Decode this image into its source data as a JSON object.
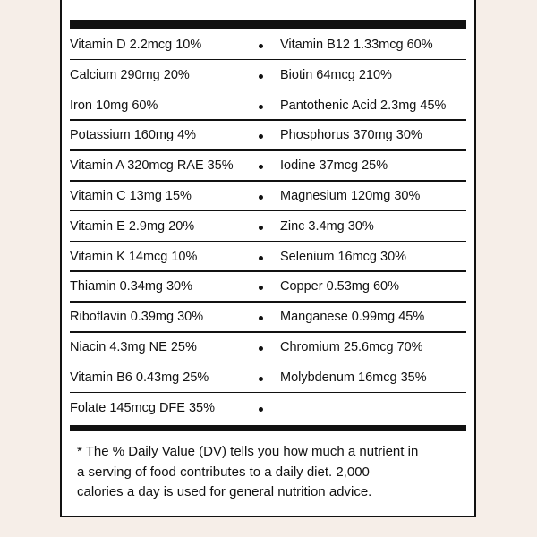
{
  "rows": [
    [
      "Vitamin D 2.2mcg 10%",
      "Vitamin B12 1.33mcg 60%"
    ],
    [
      "Calcium 290mg 20%",
      "Biotin 64mcg 210%"
    ],
    [
      "Iron 10mg 60%",
      "Pantothenic Acid 2.3mg 45%"
    ],
    [
      "Potassium 160mg 4%",
      "Phosphorus 370mg 30%"
    ],
    [
      "Vitamin A 320mcg RAE 35%",
      "Iodine 37mcg 25%"
    ],
    [
      "Vitamin C 13mg 15%",
      "Magnesium 120mg 30%"
    ],
    [
      "Vitamin E 2.9mg 20%",
      "Zinc 3.4mg 30%"
    ],
    [
      "Vitamin K 14mcg 10%",
      "Selenium 16mcg 30%"
    ],
    [
      "Thiamin 0.34mg 30%",
      "Copper 0.53mg 60%"
    ],
    [
      "Riboflavin 0.39mg 30%",
      "Manganese 0.99mg 45%"
    ],
    [
      "Niacin 4.3mg NE 25%",
      "Chromium 25.6mcg 70%"
    ],
    [
      "Vitamin B6 0.43mg 25%",
      "Molybdenum 16mcg 35%"
    ],
    [
      "Folate 145mcg DFE 35%"
    ]
  ],
  "footnote": [
    "* The % Daily Value (DV) tells you how much a nutrient in",
    "a serving of food contributes to a daily diet. 2,000",
    "calories a day is used for general nutrition advice."
  ]
}
